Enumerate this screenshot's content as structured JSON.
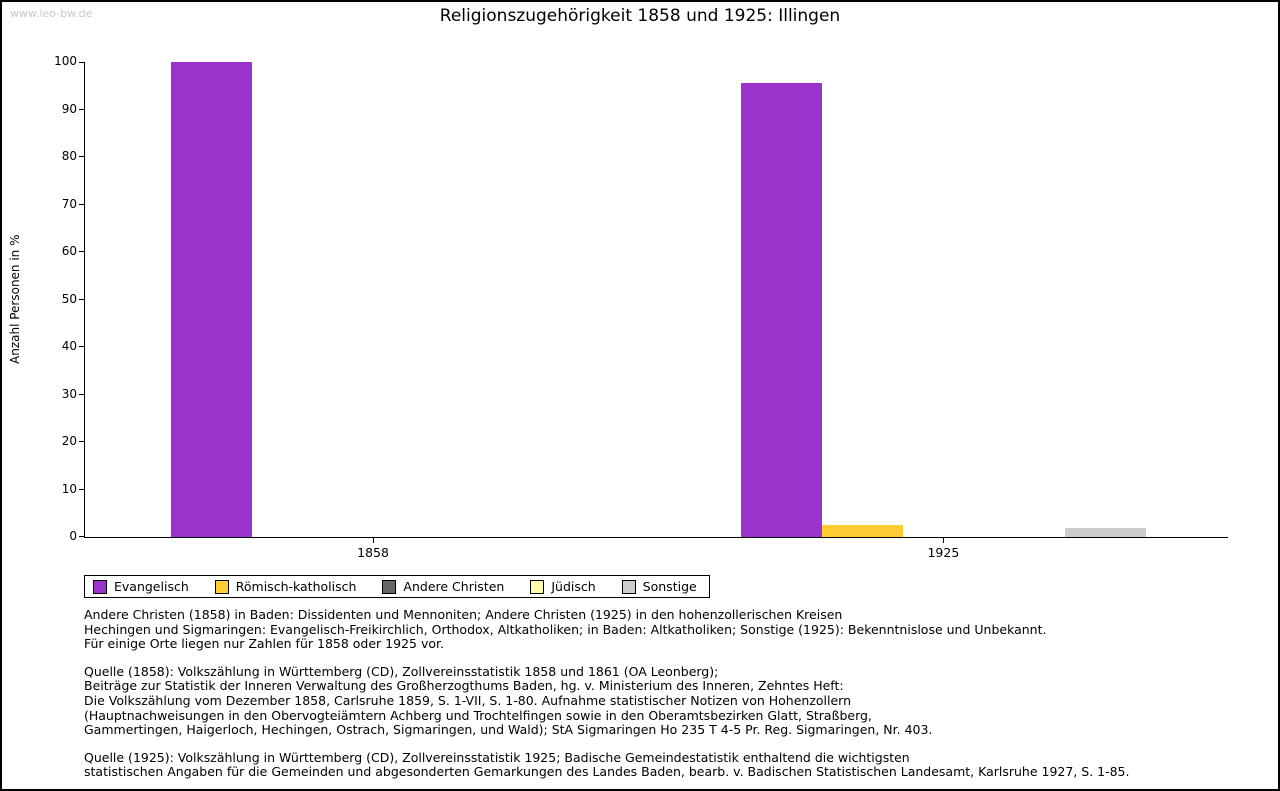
{
  "watermark": "www.leo-bw.de",
  "chart_data": {
    "type": "bar",
    "title": "Religionszugehörigkeit 1858 und 1925: Illingen",
    "xlabel": "",
    "ylabel": "Anzahl Personen in %",
    "ylim": [
      0,
      100
    ],
    "ytick_step": 10,
    "grid": false,
    "legend_position": "bottom-left",
    "categories": [
      "1858",
      "1925"
    ],
    "series": [
      {
        "name": "Evangelisch",
        "color": "#9933cc",
        "values": [
          100,
          95.6
        ]
      },
      {
        "name": "Römisch-katholisch",
        "color": "#ffcc33",
        "values": [
          0,
          2.6
        ]
      },
      {
        "name": "Andere Christen",
        "color": "#666666",
        "values": [
          0,
          0
        ]
      },
      {
        "name": "Jüdisch",
        "color": "#ffffaa",
        "values": [
          0,
          0
        ]
      },
      {
        "name": "Sonstige",
        "color": "#cccccc",
        "values": [
          0,
          1.9
        ]
      }
    ]
  },
  "notes": [
    "Andere Christen (1858) in Baden: Dissidenten und Mennoniten; Andere Christen (1925) in den hohenzollerischen Kreisen\nHechingen und Sigmaringen: Evangelisch-Freikirchlich, Orthodox, Altkatholiken; in Baden: Altkatholiken; Sonstige (1925): Bekenntnislose und Unbekannt.\nFür einige Orte liegen nur Zahlen für 1858 oder 1925 vor.",
    "Quelle (1858): Volkszählung in Württemberg (CD), Zollvereinsstatistik 1858 und 1861 (OA Leonberg);\nBeiträge zur Statistik der Inneren Verwaltung des Großherzogthums Baden, hg. v. Ministerium des Inneren, Zehntes Heft:\nDie Volkszählung vom Dezember 1858, Carlsruhe 1859, S. 1-VII, S. 1-80. Aufnahme statistischer Notizen von Hohenzollern\n(Hauptnachweisungen in den Obervogteiämtern Achberg und Trochtelfingen sowie in den Oberamtsbezirken Glatt, Straßberg,\nGammertingen, Haigerloch, Hechingen, Ostrach, Sigmaringen, und Wald); StA Sigmaringen Ho 235 T 4-5 Pr. Reg. Sigmaringen, Nr. 403.",
    "Quelle (1925): Volkszählung in Württemberg (CD), Zollvereinsstatistik 1925; Badische Gemeindestatistik enthaltend die wichtigsten\nstatistischen Angaben für die Gemeinden und abgesonderten Gemarkungen des Landes Baden, bearb. v. Badischen Statistischen Landesamt, Karlsruhe 1927, S. 1-85."
  ]
}
